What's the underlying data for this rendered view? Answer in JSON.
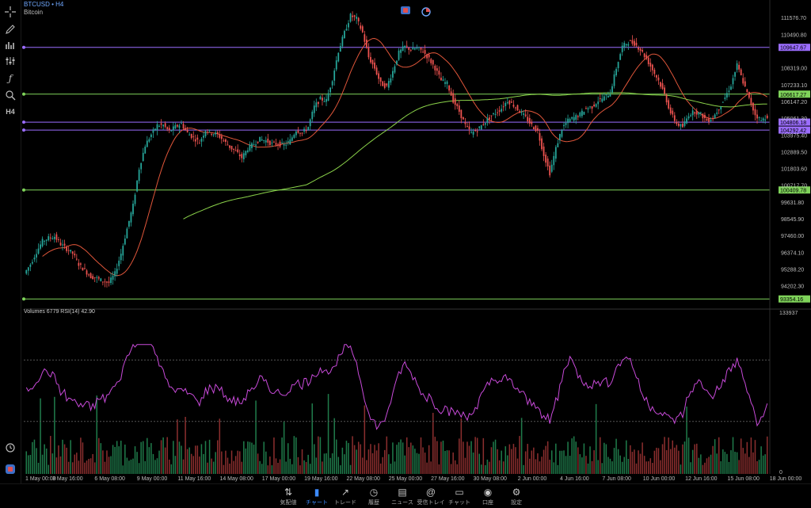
{
  "header": {
    "symbol": "BTCUSD",
    "timeframe": "H4",
    "description": "Bitcoin"
  },
  "toolbar": {
    "icons": [
      "crosshair-icon",
      "pen-icon",
      "indicators-icon",
      "objects-icon",
      "function-icon",
      "find-icon",
      "h4-label"
    ],
    "h4_label": "H4"
  },
  "indicator_label": "Volumes 6779 RSI(14) 42.90",
  "volume_axis_max": "133937",
  "volume_axis_zero": "0",
  "colors": {
    "bull": "#26a69a",
    "bear": "#ef5350",
    "ma_fast": "#e0563a",
    "ma_slow": "#8bd34a",
    "rsi": "#c84ad9",
    "hline_green": "#7fd35a",
    "hline_purple": "#9b6dff"
  },
  "chart_data": {
    "type": "candlestick",
    "price_axis": {
      "min": 92800,
      "max": 112200,
      "ticks": [
        "111576.70",
        "110490.80",
        "108319.00",
        "107233.10",
        "106147.20",
        "105061.30",
        "103975.40",
        "102889.50",
        "101803.60",
        "100717.70",
        "99631.80",
        "98545.90",
        "97460.00",
        "96374.10",
        "95288.20",
        "94202.30"
      ]
    },
    "time_labels": [
      "1 May 00:00",
      "3 May 16:00",
      "6 May 08:00",
      "9 May 00:00",
      "11 May 16:00",
      "14 May 08:00",
      "17 May 00:00",
      "19 May 16:00",
      "22 May 08:00",
      "25 May 00:00",
      "27 May 16:00",
      "30 May 08:00",
      "2 Jun 00:00",
      "4 Jun 16:00",
      "7 Jun 08:00",
      "10 Jun 00:00",
      "12 Jun 16:00",
      "15 Jun 08:00",
      "18 Jun 00:00"
    ],
    "horizontal_lines": [
      {
        "price": 109647.67,
        "label": "109647.67",
        "color": "#9b6dff"
      },
      {
        "price": 106617.27,
        "label": "106617.27",
        "color": "#7fd35a"
      },
      {
        "price": 104806.18,
        "label": "104806.18",
        "color": "#9b6dff"
      },
      {
        "price": 104292.42,
        "label": "104292.42",
        "color": "#9b6dff"
      },
      {
        "price": 100409.78,
        "label": "100409.78",
        "color": "#7fd35a"
      },
      {
        "price": 93354.16,
        "label": "93354.16",
        "color": "#7fd35a"
      }
    ],
    "close_path": [
      95000,
      95600,
      96400,
      97100,
      97300,
      97400,
      96900,
      96600,
      96300,
      95600,
      95200,
      94800,
      94700,
      94500,
      94400,
      95000,
      96300,
      97900,
      99400,
      101800,
      103300,
      104000,
      104600,
      104600,
      104200,
      104500,
      104700,
      104100,
      103800,
      103500,
      104300,
      104100,
      104000,
      103600,
      103200,
      102900,
      102500,
      103100,
      103400,
      103700,
      103600,
      103400,
      103400,
      103300,
      103600,
      104300,
      104100,
      104500,
      105800,
      106300,
      106200,
      107600,
      109400,
      110600,
      111700,
      111500,
      110600,
      109000,
      108300,
      107300,
      107100,
      108100,
      109300,
      109700,
      109500,
      109600,
      109400,
      108900,
      108300,
      107500,
      107300,
      106200,
      105500,
      104600,
      104100,
      104300,
      104700,
      105100,
      105400,
      105700,
      106200,
      105900,
      105500,
      105100,
      104600,
      104200,
      102700,
      101500,
      103100,
      104400,
      104900,
      105100,
      105300,
      105700,
      105800,
      106200,
      106400,
      106700,
      108300,
      109700,
      110000,
      109900,
      109500,
      108900,
      108200,
      107500,
      106600,
      105400,
      104700,
      104500,
      105300,
      105500,
      105300,
      104900,
      105100,
      105700,
      106400,
      107200,
      108500,
      107400,
      106300,
      105300,
      104900,
      105200
    ]
  },
  "rsi_data": {
    "upper_level": 70,
    "lower_level": 30,
    "last_value": 42.9
  },
  "navigation": [
    {
      "label": "気配値",
      "icon": "arrows-icon",
      "active": false
    },
    {
      "label": "チャート",
      "icon": "candles-icon",
      "active": true
    },
    {
      "label": "トレード",
      "icon": "trend-icon",
      "active": false
    },
    {
      "label": "履歴",
      "icon": "history-icon",
      "active": false
    },
    {
      "label": "ニュース",
      "icon": "news-icon",
      "active": false
    },
    {
      "label": "受信トレイ",
      "icon": "mail-icon",
      "active": false
    },
    {
      "label": "チャット",
      "icon": "chat-icon",
      "active": false
    },
    {
      "label": "口座",
      "icon": "account-icon",
      "active": false
    },
    {
      "label": "設定",
      "icon": "settings-icon",
      "active": false
    }
  ]
}
